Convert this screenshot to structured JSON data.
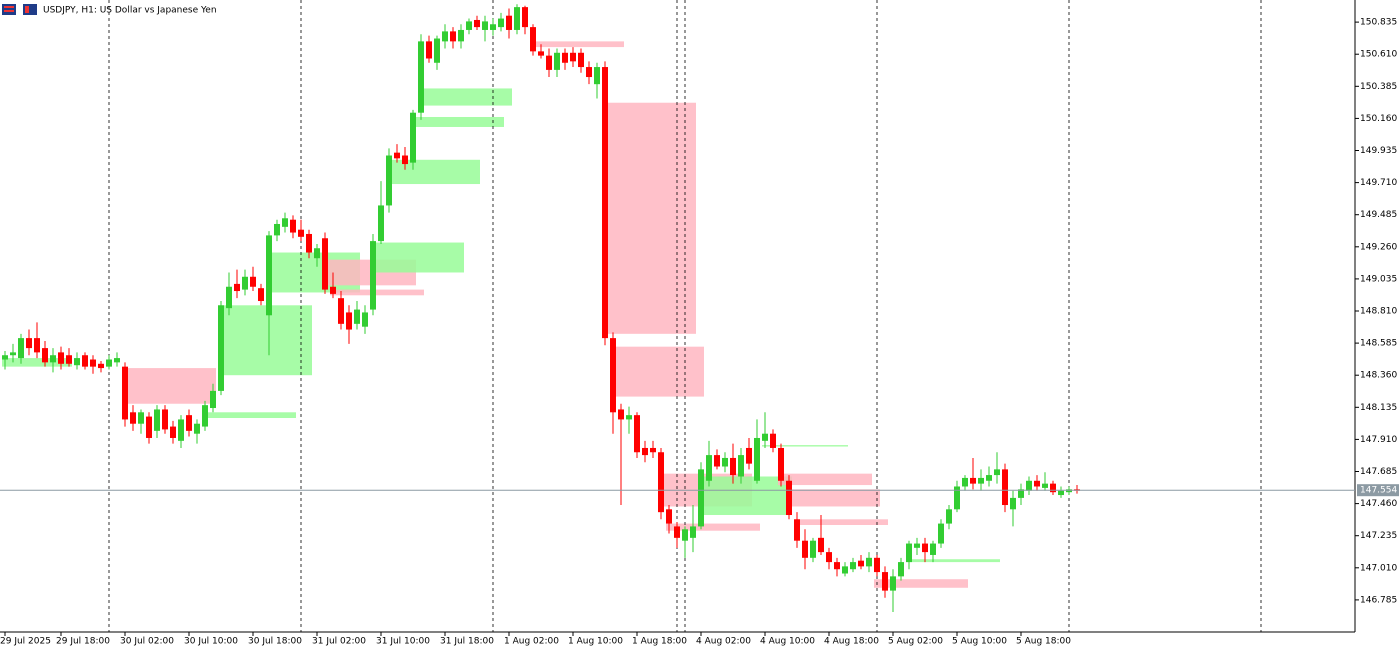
{
  "chart_data": {
    "type": "candlestick",
    "title": "USDJPY, H1:  US Dollar vs Japanese Yen",
    "categories": [
      "29 Jul 2025",
      null,
      null,
      null,
      null,
      null,
      null,
      "29 Jul 18:00",
      null,
      null,
      null,
      null,
      null,
      null,
      null,
      "30 Jul 02:00",
      null,
      null,
      null,
      null,
      null,
      null,
      null,
      "30 Jul 10:00",
      null,
      null,
      null,
      null,
      null,
      null,
      null,
      "30 Jul 18:00",
      null,
      null,
      null,
      null,
      null,
      null,
      null,
      "31 Jul 02:00",
      null,
      null,
      null,
      null,
      null,
      null,
      null,
      "31 Jul 10:00",
      null,
      null,
      null,
      null,
      null,
      null,
      null,
      "31 Jul 18:00",
      null,
      null,
      null,
      null,
      null,
      null,
      null,
      "1 Aug 02:00",
      null,
      null,
      null,
      null,
      null,
      null,
      null,
      "1 Aug 10:00",
      null,
      null,
      null,
      null,
      null,
      null,
      null,
      "1 Aug 18:00",
      null,
      null,
      null,
      null,
      null,
      null,
      null,
      "4 Aug 02:00",
      null,
      null,
      null,
      null,
      null,
      null,
      null,
      "4 Aug 10:00",
      null,
      null,
      null,
      null,
      null,
      null,
      null,
      "4 Aug 18:00",
      null,
      null,
      null,
      null,
      null,
      null,
      null,
      "5 Aug 02:00",
      null,
      null,
      null,
      null,
      null,
      null,
      null,
      "5 Aug 10:00",
      null,
      null,
      null,
      null,
      null,
      null,
      null,
      "5 Aug 18:00",
      null,
      null,
      null,
      null,
      null,
      null,
      null
    ],
    "ohlc": [
      [
        148.47,
        148.53,
        148.4,
        148.5
      ],
      [
        148.5,
        148.58,
        148.45,
        148.52
      ],
      [
        148.48,
        148.65,
        148.44,
        148.62
      ],
      [
        148.62,
        148.68,
        148.5,
        148.55
      ],
      [
        148.62,
        148.73,
        148.48,
        148.52
      ],
      [
        148.55,
        148.6,
        148.42,
        148.45
      ],
      [
        148.45,
        148.55,
        148.38,
        148.5
      ],
      [
        148.52,
        148.56,
        148.4,
        148.44
      ],
      [
        148.5,
        148.55,
        148.42,
        148.44
      ],
      [
        148.43,
        148.52,
        148.4,
        148.48
      ],
      [
        148.5,
        148.52,
        148.4,
        148.42
      ],
      [
        148.47,
        148.5,
        148.37,
        148.42
      ],
      [
        148.44,
        148.46,
        148.38,
        148.41
      ],
      [
        148.42,
        148.5,
        148.4,
        148.47
      ],
      [
        148.45,
        148.52,
        148.42,
        148.48
      ],
      [
        148.42,
        148.45,
        148.0,
        148.05
      ],
      [
        148.1,
        148.15,
        147.97,
        148.02
      ],
      [
        148.02,
        148.12,
        147.95,
        148.1
      ],
      [
        148.07,
        148.1,
        147.88,
        147.92
      ],
      [
        147.97,
        148.15,
        147.92,
        148.12
      ],
      [
        148.12,
        148.15,
        147.95,
        147.98
      ],
      [
        148.0,
        148.04,
        147.88,
        147.92
      ],
      [
        147.9,
        148.08,
        147.85,
        148.05
      ],
      [
        148.08,
        148.12,
        147.93,
        147.97
      ],
      [
        147.95,
        148.05,
        147.88,
        148.02
      ],
      [
        148.0,
        148.18,
        147.97,
        148.15
      ],
      [
        148.13,
        148.3,
        148.1,
        148.25
      ],
      [
        148.25,
        148.88,
        148.22,
        148.85
      ],
      [
        148.83,
        149.08,
        148.78,
        148.98
      ],
      [
        149.0,
        149.1,
        148.9,
        148.95
      ],
      [
        148.96,
        149.1,
        148.92,
        149.05
      ],
      [
        149.05,
        149.12,
        148.95,
        148.98
      ],
      [
        148.97,
        149.0,
        148.85,
        148.88
      ],
      [
        148.78,
        149.37,
        148.5,
        149.34
      ],
      [
        149.34,
        149.45,
        149.3,
        149.42
      ],
      [
        149.4,
        149.5,
        149.36,
        149.46
      ],
      [
        149.45,
        149.48,
        149.32,
        149.36
      ],
      [
        149.38,
        149.45,
        149.3,
        149.33
      ],
      [
        149.35,
        149.38,
        149.18,
        149.22
      ],
      [
        149.18,
        149.28,
        149.12,
        149.25
      ],
      [
        149.32,
        149.36,
        148.93,
        148.96
      ],
      [
        148.98,
        149.08,
        148.9,
        148.93
      ],
      [
        148.9,
        148.95,
        148.68,
        148.72
      ],
      [
        148.8,
        148.85,
        148.58,
        148.68
      ],
      [
        148.72,
        148.88,
        148.68,
        148.82
      ],
      [
        148.7,
        148.85,
        148.65,
        148.8
      ],
      [
        148.82,
        149.35,
        148.78,
        149.3
      ],
      [
        149.3,
        149.72,
        149.28,
        149.55
      ],
      [
        149.55,
        149.95,
        149.5,
        149.9
      ],
      [
        149.92,
        149.98,
        149.85,
        149.88
      ],
      [
        149.9,
        149.96,
        149.8,
        149.84
      ],
      [
        149.85,
        150.22,
        149.8,
        150.2
      ],
      [
        150.2,
        150.75,
        150.15,
        150.7
      ],
      [
        150.7,
        150.74,
        150.55,
        150.58
      ],
      [
        150.55,
        150.74,
        150.5,
        150.72
      ],
      [
        150.7,
        150.82,
        150.65,
        150.77
      ],
      [
        150.77,
        150.8,
        150.65,
        150.7
      ],
      [
        150.7,
        150.82,
        150.65,
        150.78
      ],
      [
        150.78,
        150.86,
        150.75,
        150.84
      ],
      [
        150.85,
        150.88,
        150.78,
        150.8
      ],
      [
        150.78,
        150.88,
        150.7,
        150.84
      ],
      [
        150.78,
        150.86,
        150.74,
        150.82
      ],
      [
        150.8,
        150.9,
        150.77,
        150.86
      ],
      [
        150.88,
        150.93,
        150.72,
        150.78
      ],
      [
        150.78,
        150.96,
        150.75,
        150.94
      ],
      [
        150.94,
        150.95,
        150.75,
        150.8
      ],
      [
        150.8,
        150.82,
        150.6,
        150.63
      ],
      [
        150.63,
        150.68,
        150.58,
        150.6
      ],
      [
        150.6,
        150.65,
        150.45,
        150.5
      ],
      [
        150.5,
        150.65,
        150.45,
        150.62
      ],
      [
        150.62,
        150.65,
        150.5,
        150.55
      ],
      [
        150.62,
        150.66,
        150.52,
        150.56
      ],
      [
        150.62,
        150.65,
        150.48,
        150.52
      ],
      [
        150.52,
        150.56,
        150.4,
        150.45
      ],
      [
        150.4,
        150.55,
        150.3,
        150.52
      ],
      [
        150.52,
        150.56,
        148.57,
        148.62
      ],
      [
        148.62,
        148.66,
        147.95,
        148.1
      ],
      [
        148.12,
        148.16,
        147.45,
        148.05
      ],
      [
        148.05,
        148.14,
        147.95,
        148.08
      ],
      [
        148.08,
        148.1,
        147.78,
        147.82
      ],
      [
        147.85,
        147.9,
        147.75,
        147.8
      ],
      [
        147.85,
        147.9,
        147.78,
        147.82
      ],
      [
        147.82,
        147.85,
        147.35,
        147.4
      ],
      [
        147.42,
        147.45,
        147.25,
        147.32
      ],
      [
        147.3,
        147.33,
        147.15,
        147.22
      ],
      [
        147.2,
        147.3,
        147.08,
        147.28
      ],
      [
        147.22,
        147.45,
        147.12,
        147.3
      ],
      [
        147.3,
        147.75,
        147.28,
        147.7
      ],
      [
        147.62,
        147.9,
        147.58,
        147.8
      ],
      [
        147.8,
        147.84,
        147.7,
        147.72
      ],
      [
        147.72,
        147.82,
        147.68,
        147.78
      ],
      [
        147.78,
        147.88,
        147.6,
        147.66
      ],
      [
        147.65,
        147.85,
        147.6,
        147.8
      ],
      [
        147.85,
        147.92,
        147.7,
        147.74
      ],
      [
        147.62,
        148.05,
        147.6,
        147.92
      ],
      [
        147.9,
        148.1,
        147.85,
        147.95
      ],
      [
        147.95,
        147.98,
        147.82,
        147.85
      ],
      [
        147.85,
        147.88,
        147.58,
        147.62
      ],
      [
        147.62,
        147.66,
        147.35,
        147.38
      ],
      [
        147.35,
        147.4,
        147.15,
        147.2
      ],
      [
        147.2,
        147.28,
        147.0,
        147.08
      ],
      [
        147.08,
        147.22,
        147.05,
        147.2
      ],
      [
        147.22,
        147.38,
        147.1,
        147.12
      ],
      [
        147.12,
        147.15,
        147.0,
        147.05
      ],
      [
        147.05,
        147.08,
        146.95,
        147.0
      ],
      [
        146.97,
        147.05,
        146.95,
        147.02
      ],
      [
        147.0,
        147.08,
        146.98,
        147.05
      ],
      [
        147.06,
        147.1,
        147.0,
        147.02
      ],
      [
        147.02,
        147.12,
        146.98,
        147.08
      ],
      [
        147.08,
        147.1,
        146.95,
        146.98
      ],
      [
        146.98,
        147.02,
        146.8,
        146.85
      ],
      [
        146.85,
        147.0,
        146.7,
        146.95
      ],
      [
        146.95,
        147.08,
        146.92,
        147.05
      ],
      [
        147.05,
        147.2,
        147.0,
        147.18
      ],
      [
        147.15,
        147.22,
        147.1,
        147.18
      ],
      [
        147.18,
        147.22,
        147.05,
        147.12
      ],
      [
        147.1,
        147.2,
        147.05,
        147.18
      ],
      [
        147.18,
        147.35,
        147.15,
        147.32
      ],
      [
        147.32,
        147.45,
        147.28,
        147.42
      ],
      [
        147.42,
        147.62,
        147.4,
        147.58
      ],
      [
        147.58,
        147.66,
        147.55,
        147.64
      ],
      [
        147.64,
        147.78,
        147.56,
        147.6
      ],
      [
        147.6,
        147.7,
        147.55,
        147.64
      ],
      [
        147.62,
        147.72,
        147.58,
        147.66
      ],
      [
        147.66,
        147.82,
        147.6,
        147.7
      ],
      [
        147.7,
        147.74,
        147.4,
        147.45
      ],
      [
        147.42,
        147.55,
        147.3,
        147.5
      ],
      [
        147.5,
        147.6,
        147.45,
        147.56
      ],
      [
        147.55,
        147.65,
        147.52,
        147.62
      ],
      [
        147.62,
        147.66,
        147.55,
        147.58
      ],
      [
        147.57,
        147.68,
        147.55,
        147.6
      ],
      [
        147.6,
        147.62,
        147.52,
        147.54
      ],
      [
        147.52,
        147.58,
        147.5,
        147.55
      ],
      [
        147.54,
        147.58,
        147.52,
        147.56
      ],
      [
        147.56,
        147.59,
        147.53,
        147.55
      ]
    ],
    "up_color": "#32cd32",
    "down_color": "#ff0000",
    "zones": [
      {
        "start": 0,
        "end": 8,
        "low": 148.42,
        "high": 148.48,
        "color": "#98fb98"
      },
      {
        "start": 15,
        "end": 26,
        "low": 148.16,
        "high": 148.41,
        "color": "#ffb6c1"
      },
      {
        "start": 25,
        "end": 36,
        "low": 148.06,
        "high": 148.1,
        "color": "#98fb98"
      },
      {
        "start": 27,
        "end": 38,
        "low": 148.36,
        "high": 148.85,
        "color": "#98fb98"
      },
      {
        "start": 33,
        "end": 44,
        "low": 148.94,
        "high": 149.22,
        "color": "#98fb98"
      },
      {
        "start": 40,
        "end": 51,
        "low": 148.99,
        "high": 149.17,
        "color": "#ffb6c1"
      },
      {
        "start": 41,
        "end": 52,
        "low": 148.92,
        "high": 148.96,
        "color": "#ffb6c1"
      },
      {
        "start": 46,
        "end": 57,
        "low": 149.08,
        "high": 149.29,
        "color": "#98fb98"
      },
      {
        "start": 48,
        "end": 59,
        "low": 149.7,
        "high": 149.87,
        "color": "#98fb98"
      },
      {
        "start": 51,
        "end": 62,
        "low": 150.1,
        "high": 150.17,
        "color": "#98fb98"
      },
      {
        "start": 52,
        "end": 63,
        "low": 150.25,
        "high": 150.37,
        "color": "#98fb98"
      },
      {
        "start": 66,
        "end": 77,
        "low": 150.66,
        "high": 150.7,
        "color": "#ffb6c1"
      },
      {
        "start": 75,
        "end": 86,
        "low": 148.65,
        "high": 150.27,
        "color": "#ffb6c1"
      },
      {
        "start": 76,
        "end": 87,
        "low": 148.21,
        "high": 148.56,
        "color": "#ffb6c1"
      },
      {
        "start": 82,
        "end": 93,
        "low": 147.44,
        "high": 147.67,
        "color": "#ffb6c1"
      },
      {
        "start": 83,
        "end": 94,
        "low": 147.27,
        "high": 147.32,
        "color": "#ffb6c1"
      },
      {
        "start": 87,
        "end": 98,
        "low": 147.38,
        "high": 147.65,
        "color": "#98fb98"
      },
      {
        "start": 95,
        "end": 105,
        "low": 147.86,
        "high": 147.87,
        "color": "#98fb98"
      },
      {
        "start": 97,
        "end": 108,
        "low": 147.59,
        "high": 147.67,
        "color": "#ffb6c1"
      },
      {
        "start": 98,
        "end": 109,
        "low": 147.44,
        "high": 147.56,
        "color": "#ffb6c1"
      },
      {
        "start": 99,
        "end": 110,
        "low": 147.31,
        "high": 147.35,
        "color": "#ffb6c1"
      },
      {
        "start": 109,
        "end": 120,
        "low": 146.87,
        "high": 146.93,
        "color": "#ffb6c1"
      },
      {
        "start": 113,
        "end": 124,
        "low": 147.05,
        "high": 147.07,
        "color": "#98fb98"
      }
    ],
    "current_price": 147.554,
    "ylim": [
      146.56,
      150.99
    ],
    "yticks": [
      {
        "value": 146.785,
        "label": "146.785"
      },
      {
        "value": 147.01,
        "label": "147.010"
      },
      {
        "value": 147.235,
        "label": "147.235"
      },
      {
        "value": 147.46,
        "label": "147.460"
      },
      {
        "value": 147.685,
        "label": "147.685"
      },
      {
        "value": 147.91,
        "label": "147.910"
      },
      {
        "value": 148.135,
        "label": "148.135"
      },
      {
        "value": 148.36,
        "label": "148.360"
      },
      {
        "value": 148.585,
        "label": "148.585"
      },
      {
        "value": 148.81,
        "label": "148.810"
      },
      {
        "value": 149.035,
        "label": "149.035"
      },
      {
        "value": 149.26,
        "label": "149.260"
      },
      {
        "value": 149.485,
        "label": "149.485"
      },
      {
        "value": 149.71,
        "label": "149.710"
      },
      {
        "value": 149.935,
        "label": "149.935"
      },
      {
        "value": 150.16,
        "label": "150.160"
      },
      {
        "value": 150.385,
        "label": "150.385"
      },
      {
        "value": 150.61,
        "label": "150.610"
      },
      {
        "value": 150.835,
        "label": "150.835"
      }
    ]
  }
}
